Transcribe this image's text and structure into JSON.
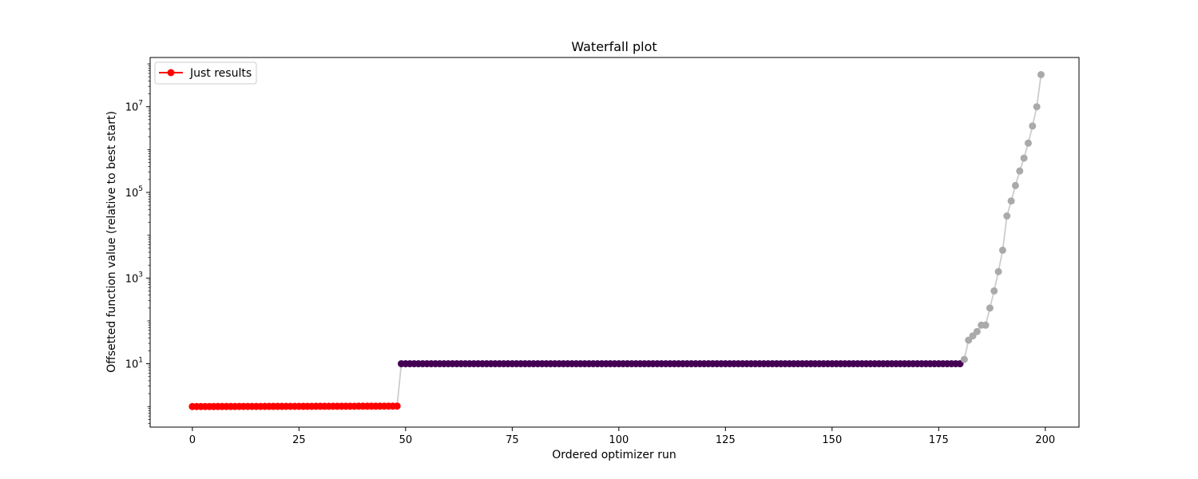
{
  "chart_data": {
    "type": "scatter",
    "title": "Waterfall plot",
    "xlabel": "Ordered optimizer run",
    "ylabel": "Offsetted function value (relative to best start)",
    "xlim": [
      -9.9,
      207.9
    ],
    "ylim_log10": [
      -0.48,
      8.15
    ],
    "yscale": "log",
    "grid": false,
    "legend_position": "top-left",
    "x_ticks": [
      0,
      25,
      50,
      75,
      100,
      125,
      150,
      175,
      200
    ],
    "y_ticks": [
      {
        "base": "10",
        "exp": "1",
        "log": 1
      },
      {
        "base": "10",
        "exp": "3",
        "log": 3
      },
      {
        "base": "10",
        "exp": "5",
        "log": 5
      },
      {
        "base": "10",
        "exp": "7",
        "log": 7
      }
    ],
    "line_color": "#cccccc",
    "series": [
      {
        "name": "Just results",
        "color": "#ff0000",
        "x_start": 0,
        "x_end": 48,
        "log_values": [
          0,
          0.01
        ]
      },
      {
        "color": "#440154",
        "x_start": 49,
        "x_end": 180,
        "log_values": [
          1,
          1
        ]
      },
      {
        "color": "#aaaaaa",
        "x_start": 181,
        "log_values": [
          1.1,
          1.55,
          1.65,
          1.75,
          1.9,
          1.9,
          2.3,
          2.7,
          3.15,
          3.65,
          4.45,
          4.8,
          5.16,
          5.5,
          5.8,
          6.15,
          6.55,
          7.0,
          7.75
        ]
      }
    ]
  }
}
